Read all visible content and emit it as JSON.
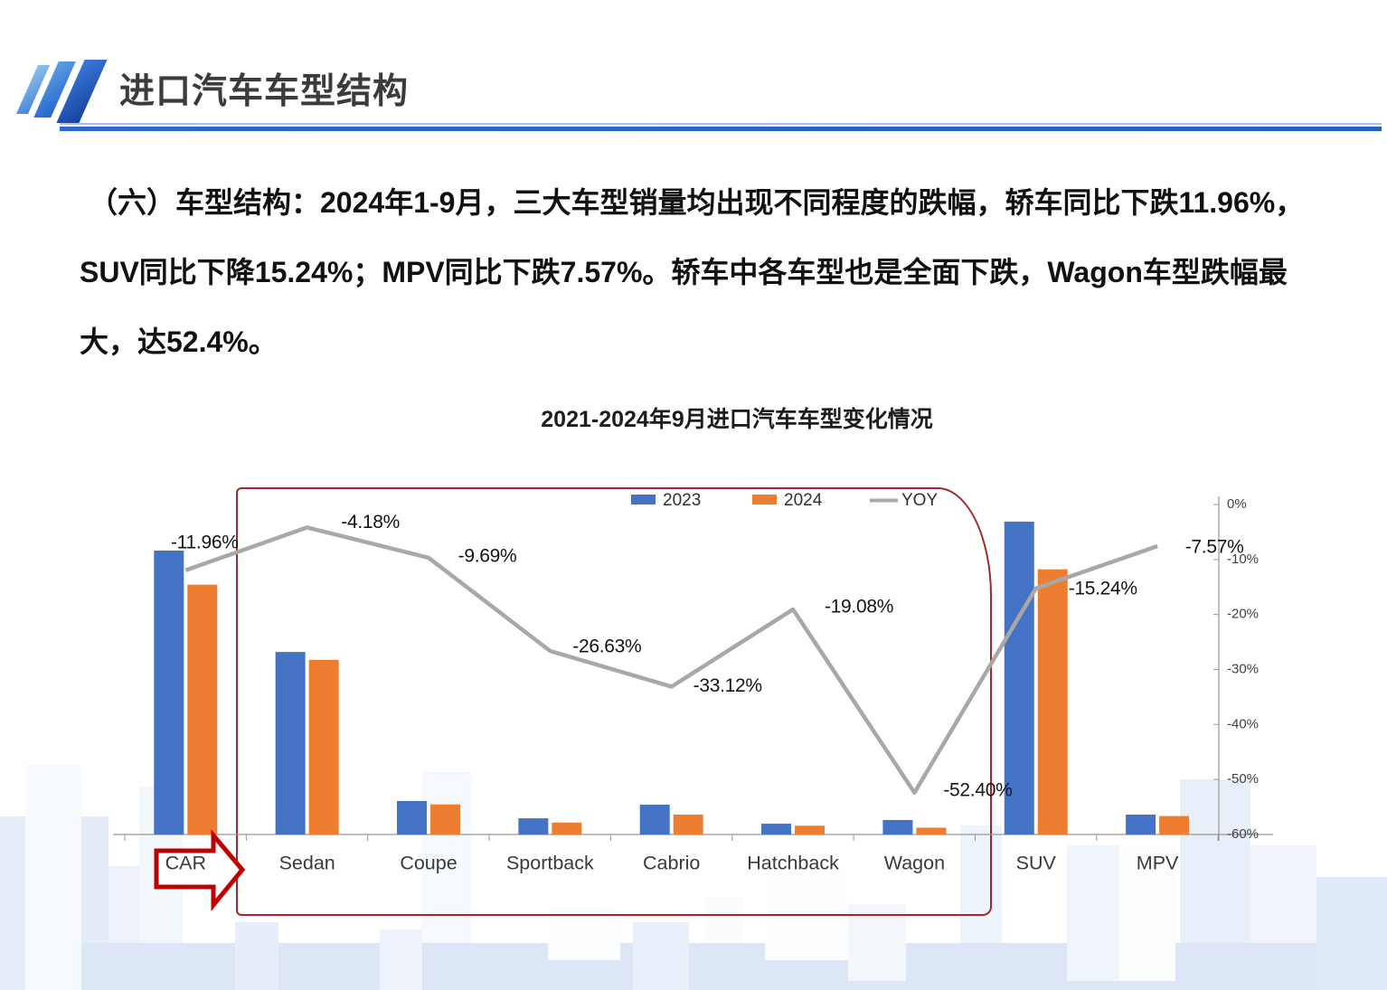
{
  "header": {
    "title": "进口汽车车型结构"
  },
  "body": {
    "line1": "（六）车型结构：2024年1-9月，三大车型销量均出现不同程度的跌幅，轿车同比下跌11.96%，",
    "line2": "SUV同比下降15.24%；MPV同比下跌7.57%。轿车中各车型也是全面下跌，Wagon车型跌幅最",
    "line3": "大，达52.4%。"
  },
  "chart": {
    "title": "2021-2024年9月进口汽车车型变化情况"
  },
  "accents": {
    "bar_2023": "#4472C4",
    "bar_2024": "#ED7D31",
    "yoy_line": "#A8A8A8",
    "highlight_red": "#C00000",
    "box_red": "#9E2B25",
    "header_blue": "#1C64C8"
  },
  "chart_data": {
    "type": "bar",
    "note": "grouped bars with overlaid YOY line on right axis; left value axis not shown, bar values are relative estimates (CAR 2023 = 100)",
    "categories": [
      "CAR",
      "Sedan",
      "Coupe",
      "Sportback",
      "Cabrio",
      "Hatchback",
      "Wagon",
      "SUV",
      "MPV"
    ],
    "series": [
      {
        "name": "2023",
        "type": "bar",
        "color": "#4472C4",
        "values": [
          100,
          64.3,
          11.8,
          5.7,
          10.5,
          3.8,
          5.1,
          110.2,
          7.0
        ]
      },
      {
        "name": "2024",
        "type": "bar",
        "color": "#ED7D31",
        "values": [
          88.0,
          61.5,
          10.6,
          4.2,
          7.0,
          3.1,
          2.4,
          93.4,
          6.5
        ]
      },
      {
        "name": "YOY",
        "type": "line",
        "color": "#A8A8A8",
        "axis": "right",
        "values": [
          -11.96,
          -4.18,
          -9.69,
          -26.63,
          -33.12,
          -19.08,
          -52.4,
          -15.24,
          -7.57
        ]
      }
    ],
    "yoy_labels": [
      "-11.96%",
      "-4.18%",
      "-9.69%",
      "-26.63%",
      "-33.12%",
      "-19.08%",
      "-52.40%",
      "-15.24%",
      "-7.57%"
    ],
    "right_axis": {
      "ticks": [
        "0%",
        "-10%",
        "-20%",
        "-30%",
        "-40%",
        "-50%",
        "-60%"
      ],
      "range": [
        0,
        -60
      ]
    },
    "legend": [
      "2023",
      "2024",
      "YOY"
    ],
    "legend_position": "top-center",
    "grid": "off",
    "highlight_categories": [
      "Sedan",
      "Coupe",
      "Sportback",
      "Cabrio",
      "Hatchback",
      "Wagon"
    ],
    "arrow_points_at": "CAR"
  }
}
